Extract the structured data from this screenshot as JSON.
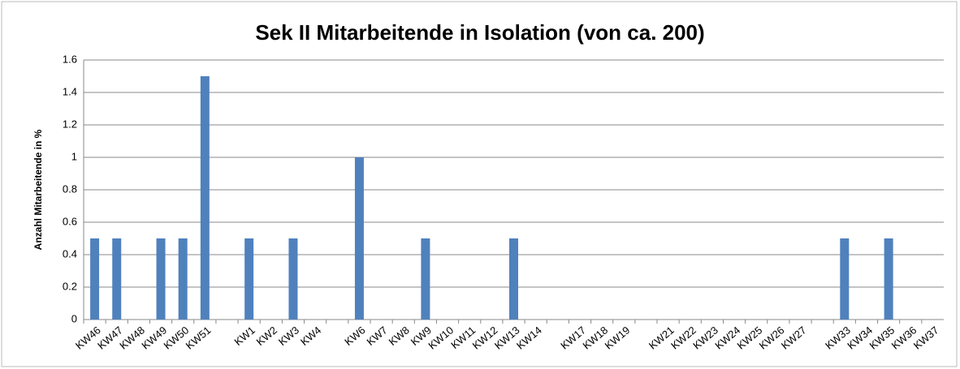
{
  "chart_data": {
    "type": "bar",
    "title": "Sek II Mitarbeitende in Isolation (von ca. 200)",
    "y_label": "Anzahl Mitarbeitende in %",
    "categories": [
      "KW46",
      "KW47",
      "KW48",
      "KW49",
      "KW50",
      "KW51",
      null,
      "KW1",
      "KW2",
      "KW3",
      "KW4",
      null,
      "KW6",
      "KW7",
      "KW8",
      "KW9",
      "KW10",
      "KW11",
      "KW12",
      "KW13",
      "KW14",
      null,
      "KW17",
      "KW18",
      "KW19",
      null,
      "KW21",
      "KW22",
      "KW23",
      "KW24",
      "KW25",
      "KW26",
      "KW27",
      null,
      "KW33",
      "KW34",
      "KW35",
      "KW36",
      "KW37"
    ],
    "values": [
      0.5,
      0.5,
      0,
      0.5,
      0.5,
      1.5,
      null,
      0.5,
      0,
      0.5,
      0,
      null,
      1,
      0,
      0,
      0.5,
      0,
      0,
      0,
      0.5,
      0,
      null,
      0,
      0,
      0,
      null,
      0,
      0,
      0,
      0,
      0,
      0,
      0,
      null,
      0.5,
      0,
      0.5,
      0,
      0
    ],
    "color": "#4f81bd",
    "ylim": [
      0,
      1.6
    ],
    "yticks": [
      0,
      0.2,
      0.4,
      0.6,
      0.8,
      1,
      1.2,
      1.4,
      1.6
    ],
    "grid": true
  }
}
